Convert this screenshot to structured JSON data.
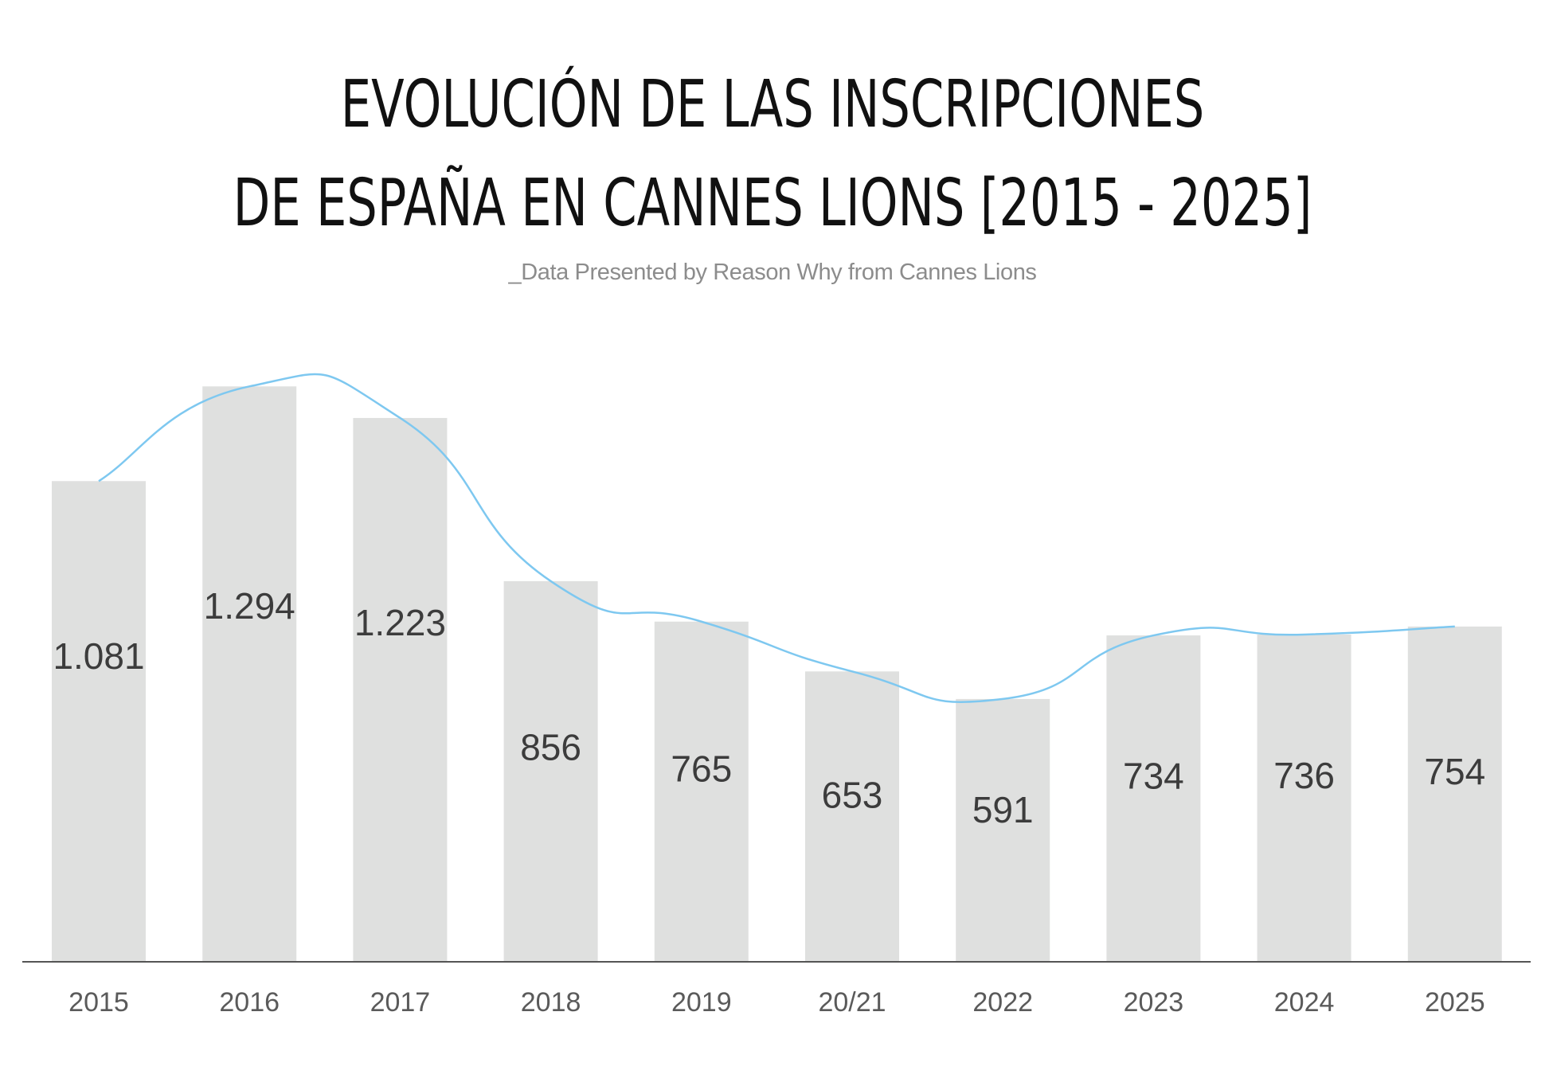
{
  "title": {
    "line1": "EVOLUCIÓN DE LAS INSCRIPCIONES",
    "line2": "DE ESPAÑA EN CANNES LIONS [2015 - 2025]"
  },
  "subtitle": "_Data Presented by Reason Why from Cannes Lions",
  "colors": {
    "bar": "#dfe0df",
    "trend_line": "#7ec8f0",
    "axis": "#555555"
  },
  "chart_data": {
    "type": "bar",
    "categories": [
      "2015",
      "2016",
      "2017",
      "2018",
      "2019",
      "20/21",
      "2022",
      "2023",
      "2024",
      "2025"
    ],
    "values": [
      1081,
      1294,
      1223,
      856,
      765,
      653,
      591,
      734,
      736,
      754
    ],
    "value_labels": [
      "1.081",
      "1.294",
      "1.223",
      "856",
      "765",
      "653",
      "591",
      "734",
      "736",
      "754"
    ],
    "trend_line": "smoothed curve over bars",
    "ylim": [
      0,
      1310
    ],
    "grid": false,
    "legend": "none",
    "xlabel": "",
    "ylabel": ""
  }
}
